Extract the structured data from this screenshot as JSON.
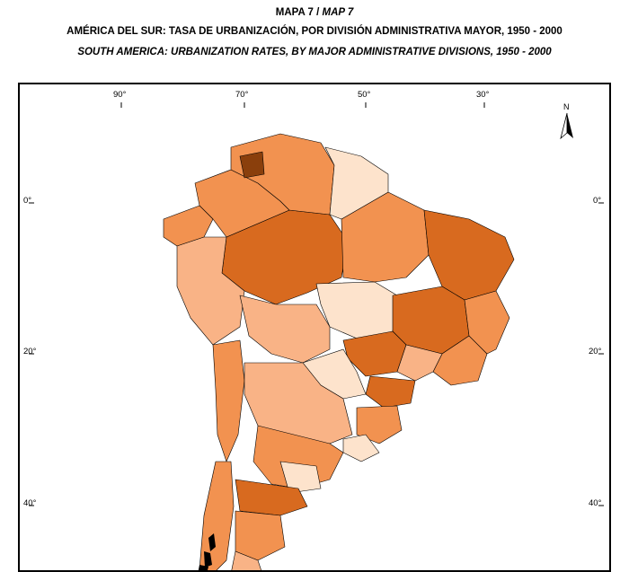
{
  "title": {
    "map_label": "MAPA 7 / ",
    "map_label_en": "MAP 7",
    "es": "AMÉRICA DEL SUR: TASA DE URBANIZACIÓN, POR DIVISIÓN ADMINISTRATIVA MAYOR, 1950 - 2000",
    "en": "SOUTH AMERICA: URBANIZATION RATES, BY MAJOR ADMINISTRATIVE DIVISIONS, 1950 - 2000"
  },
  "graticule": {
    "longitudes": [
      "90°",
      "70°",
      "50°",
      "30°"
    ],
    "latitudes_left": [
      "0°",
      "20°",
      "40°"
    ],
    "latitudes_right": [
      "0°",
      "20°",
      "40°"
    ]
  },
  "north_arrow": {
    "label": "N",
    "icon": "north-arrow-icon"
  },
  "colors": {
    "very_light": "#fde3cc",
    "light": "#f9b386",
    "medium": "#f29250",
    "dark": "#d86a1f",
    "very_dark": "#8a3f0c",
    "border": "#000000"
  }
}
